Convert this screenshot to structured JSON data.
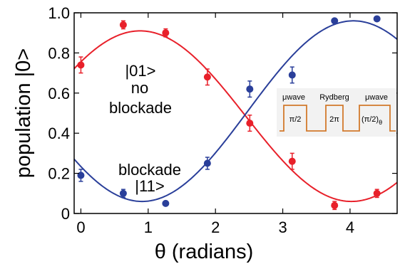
{
  "chart_data": {
    "type": "scatter",
    "xlabel": "θ (radians)",
    "ylabel": "population |0>",
    "xlim": [
      -0.1,
      4.7
    ],
    "ylim": [
      0,
      1.0
    ],
    "x_ticks": [
      "0",
      "1",
      "2",
      "3",
      "4"
    ],
    "y_ticks": [
      "0",
      "0.2",
      "0.4",
      "0.6",
      "0.8",
      "1.0"
    ],
    "grid": false,
    "series": [
      {
        "color": "#e8202a",
        "points": [
          {
            "x": 0.0,
            "y": 0.74,
            "err": 0.04
          },
          {
            "x": 0.63,
            "y": 0.94,
            "err": 0.02
          },
          {
            "x": 1.26,
            "y": 0.9,
            "err": 0.02
          },
          {
            "x": 1.88,
            "y": 0.68,
            "err": 0.04
          },
          {
            "x": 2.51,
            "y": 0.45,
            "err": 0.04
          },
          {
            "x": 3.14,
            "y": 0.26,
            "err": 0.04
          },
          {
            "x": 3.77,
            "y": 0.04,
            "err": 0.02
          },
          {
            "x": 4.4,
            "y": 0.1,
            "err": 0.02
          }
        ],
        "fit": {
          "offset": 0.485,
          "amplitude": 0.425,
          "center": 0.88,
          "period": 6.28
        }
      },
      {
        "color": "#2a3f9a",
        "points": [
          {
            "x": 0.0,
            "y": 0.19,
            "err": 0.03
          },
          {
            "x": 0.63,
            "y": 0.1,
            "err": 0.02
          },
          {
            "x": 1.26,
            "y": 0.05,
            "err": 0.01
          },
          {
            "x": 1.88,
            "y": 0.25,
            "err": 0.03
          },
          {
            "x": 2.51,
            "y": 0.62,
            "err": 0.04
          },
          {
            "x": 3.14,
            "y": 0.69,
            "err": 0.04
          },
          {
            "x": 3.77,
            "y": 0.96,
            "err": 0.01
          },
          {
            "x": 4.4,
            "y": 0.97,
            "err": 0.01
          }
        ],
        "fit": {
          "offset": 0.51,
          "amplitude": 0.45,
          "center": 4.05,
          "period": 6.28
        }
      }
    ],
    "annotations": {
      "red_label_1": "|01>",
      "red_label_2": "no",
      "red_label_3": "blockade",
      "blue_label_1": "blockade",
      "blue_label_2": "|11>"
    },
    "inset": {
      "labels": [
        "μwave",
        "Rydberg",
        "μwave"
      ],
      "pulses": [
        "π/2",
        "2π",
        "(π/2)"
      ],
      "subscript": "θ",
      "line_color": "#d27a2c",
      "background": "#f2f2f2"
    }
  }
}
